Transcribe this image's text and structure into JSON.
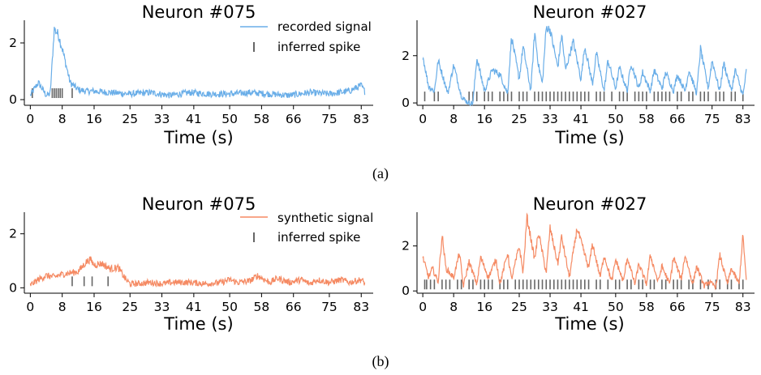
{
  "figure": {
    "caption_a": "(a)",
    "caption_b": "(b)"
  },
  "chart_data": [
    {
      "type": "line",
      "title": "Neuron #075",
      "xlabel": "Time (s)",
      "ylabel": "",
      "xlim": [
        -1.5,
        86
      ],
      "ylim": [
        -0.2,
        2.8
      ],
      "xticks": [
        0,
        8,
        16,
        25,
        33,
        41,
        50,
        58,
        66,
        75,
        83
      ],
      "yticks": [
        0,
        2
      ],
      "legend": {
        "position": "top-right",
        "entries": [
          "recorded signal",
          "inferred spike"
        ]
      },
      "series": [
        {
          "name": "recorded signal",
          "color": "#6aaee8",
          "x": [
            0,
            2,
            4,
            5,
            6,
            7,
            8,
            9,
            10,
            12,
            14,
            16,
            20,
            25,
            30,
            35,
            40,
            45,
            50,
            55,
            60,
            65,
            70,
            75,
            80,
            83,
            84
          ],
          "y": [
            0.15,
            0.6,
            0.15,
            0.2,
            2.5,
            2.3,
            1.8,
            1.2,
            0.6,
            0.35,
            0.3,
            0.3,
            0.25,
            0.2,
            0.25,
            0.15,
            0.25,
            0.2,
            0.2,
            0.25,
            0.2,
            0.15,
            0.25,
            0.2,
            0.3,
            0.5,
            0.25
          ]
        },
        {
          "name": "inferred spike",
          "color": "#666666",
          "x": [
            0.5,
            5.5,
            6,
            6.5,
            7,
            7.5,
            8,
            10.5
          ]
        }
      ]
    },
    {
      "type": "line",
      "title": "Neuron #027",
      "xlabel": "Time (s)",
      "ylabel": "",
      "xlim": [
        -1.5,
        86
      ],
      "ylim": [
        -0.1,
        3.5
      ],
      "xticks": [
        0,
        8,
        16,
        25,
        33,
        41,
        50,
        58,
        66,
        75,
        83
      ],
      "yticks": [
        0,
        2
      ],
      "series": [
        {
          "name": "recorded signal",
          "color": "#6aaee8",
          "x": [
            0,
            1.5,
            3,
            4,
            6.5,
            8,
            10,
            11,
            12,
            13,
            14,
            16,
            18,
            20,
            22,
            23,
            25,
            26,
            28,
            29,
            30,
            31,
            32,
            33,
            35,
            36,
            37,
            39,
            41,
            42,
            44,
            45,
            47,
            48,
            50,
            51,
            53,
            54,
            56,
            57,
            59,
            60,
            62,
            63,
            65,
            66,
            68,
            69,
            71,
            72,
            74,
            75,
            77,
            78,
            80,
            81,
            83,
            84
          ],
          "y": [
            2.0,
            0.7,
            0.5,
            1.8,
            0.4,
            1.6,
            0.3,
            0.1,
            0.0,
            0.0,
            1.9,
            0.5,
            1.4,
            1.2,
            0.4,
            2.8,
            1.0,
            2.4,
            0.5,
            3.0,
            1.6,
            0.8,
            3.2,
            3.1,
            1.5,
            2.9,
            1.4,
            2.6,
            1.0,
            2.4,
            0.8,
            2.1,
            0.5,
            1.8,
            0.6,
            1.5,
            0.5,
            1.7,
            0.6,
            1.3,
            0.5,
            1.4,
            0.6,
            1.3,
            0.5,
            1.2,
            0.5,
            1.4,
            0.4,
            2.3,
            0.6,
            1.8,
            0.5,
            1.7,
            0.5,
            1.4,
            0.3,
            1.5
          ]
        },
        {
          "name": "inferred spike",
          "color": "#666666",
          "x": [
            0.5,
            3,
            4,
            12,
            13,
            14,
            16,
            17,
            18,
            20,
            21,
            22,
            23,
            25,
            26,
            27,
            29,
            30,
            31,
            32,
            33,
            34,
            35,
            36,
            37,
            38,
            39,
            40,
            41,
            42,
            43,
            45,
            46,
            47,
            49,
            51,
            52,
            53,
            55,
            56,
            57,
            58,
            60,
            61,
            62,
            63,
            64,
            66,
            67,
            69,
            70,
            72,
            73,
            74,
            76,
            77,
            78,
            80,
            81,
            83
          ]
        }
      ]
    },
    {
      "type": "line",
      "title": "Neuron #075",
      "xlabel": "Time (s)",
      "ylabel": "",
      "xlim": [
        -1.5,
        86
      ],
      "ylim": [
        -0.2,
        2.8
      ],
      "xticks": [
        0,
        8,
        16,
        25,
        33,
        41,
        50,
        58,
        66,
        75,
        83
      ],
      "yticks": [
        0,
        2
      ],
      "legend": {
        "position": "top-right",
        "entries": [
          "synthetic signal",
          "inferred spike"
        ]
      },
      "series": [
        {
          "name": "synthetic signal",
          "color": "#f58a63",
          "x": [
            0,
            2,
            4,
            6,
            8,
            10,
            12,
            14,
            15,
            16,
            18,
            20,
            22,
            24,
            25,
            27,
            30,
            33,
            36,
            40,
            44,
            48,
            50,
            52,
            55,
            57,
            60,
            62,
            65,
            68,
            70,
            72,
            75,
            78,
            80,
            83,
            84
          ],
          "y": [
            0.1,
            0.3,
            0.45,
            0.4,
            0.5,
            0.55,
            0.6,
            0.95,
            1.05,
            0.85,
            0.9,
            0.7,
            0.75,
            0.3,
            0.15,
            0.15,
            0.2,
            0.15,
            0.2,
            0.2,
            0.15,
            0.2,
            0.3,
            0.2,
            0.25,
            0.45,
            0.2,
            0.35,
            0.2,
            0.3,
            0.15,
            0.3,
            0.2,
            0.3,
            0.2,
            0.3,
            0.15
          ]
        },
        {
          "name": "inferred spike",
          "color": "#666666",
          "x": [
            10.5,
            13.5,
            15.5,
            19.5
          ]
        }
      ]
    },
    {
      "type": "line",
      "title": "Neuron #027",
      "xlabel": "Time (s)",
      "ylabel": "",
      "xlim": [
        -1.5,
        86
      ],
      "ylim": [
        -0.1,
        3.5
      ],
      "xticks": [
        0,
        8,
        16,
        25,
        33,
        41,
        50,
        58,
        66,
        75,
        83
      ],
      "yticks": [
        0,
        2
      ],
      "series": [
        {
          "name": "synthetic signal",
          "color": "#f58a63",
          "x": [
            0,
            1.5,
            2.5,
            4,
            5,
            6,
            8,
            9.5,
            10.5,
            12,
            14,
            15,
            17,
            19,
            20,
            22,
            23,
            25,
            26,
            27,
            29,
            30,
            32,
            33,
            35,
            36,
            38,
            40,
            41,
            43,
            44,
            46,
            47,
            49,
            50,
            52,
            53,
            55,
            56,
            58,
            59,
            61,
            62,
            64,
            65,
            67,
            68,
            70,
            71,
            73,
            74,
            76,
            77,
            79,
            80,
            82,
            83,
            84
          ],
          "y": [
            1.5,
            0.6,
            1.0,
            0.4,
            2.5,
            1.0,
            0.6,
            1.7,
            0.2,
            1.3,
            0.3,
            1.5,
            0.6,
            1.4,
            0.3,
            1.7,
            0.5,
            2.0,
            0.8,
            3.3,
            1.4,
            2.6,
            0.8,
            2.8,
            1.2,
            2.4,
            0.6,
            2.8,
            2.2,
            1.0,
            2.1,
            0.6,
            1.6,
            0.4,
            1.4,
            0.4,
            1.5,
            0.3,
            1.2,
            0.3,
            1.6,
            0.4,
            1.1,
            0.3,
            1.5,
            0.5,
            1.6,
            0.3,
            1.1,
            0.2,
            0.4,
            0.2,
            1.6,
            0.3,
            1.0,
            0.3,
            2.5,
            0.1
          ]
        },
        {
          "name": "inferred spike",
          "color": "#666666",
          "x": [
            0.5,
            1,
            2,
            3,
            5,
            6,
            7,
            9,
            10,
            12,
            13,
            15,
            16,
            17,
            18,
            20,
            21,
            22,
            24,
            25,
            26,
            27,
            28,
            29,
            30,
            31,
            32,
            33,
            34,
            35,
            36,
            37,
            38,
            39,
            40,
            41,
            42,
            43,
            45,
            46,
            48,
            50,
            51,
            53,
            54,
            56,
            57,
            59,
            60,
            62,
            63,
            65,
            66,
            67,
            69,
            70,
            72,
            74,
            76,
            77,
            79,
            80,
            82,
            83
          ]
        }
      ]
    }
  ]
}
